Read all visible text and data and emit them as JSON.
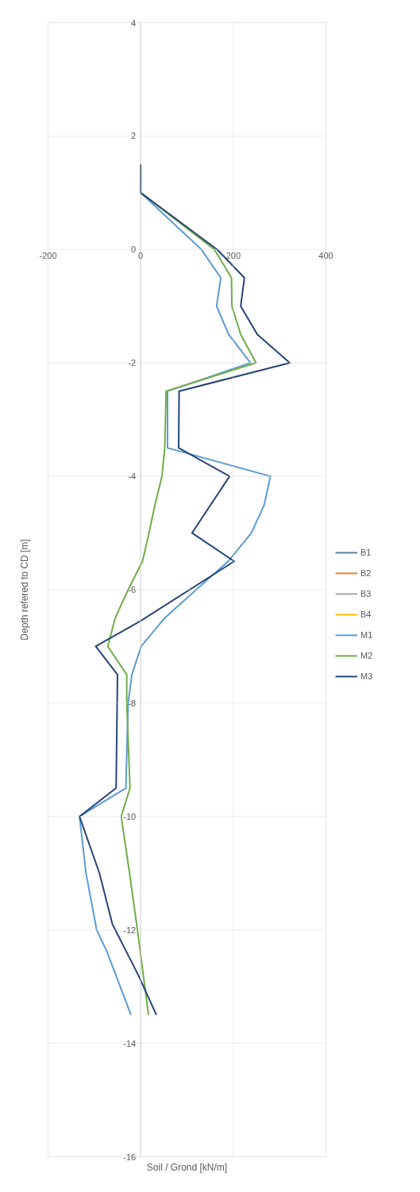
{
  "chart_data": {
    "type": "line",
    "xlabel": "Soil / Grond [kN/m]",
    "ylabel": "Depth refered to CD [m]",
    "xlim": [
      -200,
      400
    ],
    "xticks": [
      -200,
      0,
      200,
      400
    ],
    "ylim": [
      -16,
      4
    ],
    "yticks": [
      -16,
      -14,
      -12,
      -10,
      -8,
      -6,
      -4,
      -2,
      0,
      2,
      4
    ],
    "grid": true,
    "legend": "right",
    "line_style": "solid",
    "marker": "none",
    "series": [
      {
        "name": "B1",
        "color": "#5f7fa8"
      },
      {
        "name": "B2",
        "color": "#ed7d31"
      },
      {
        "name": "B3",
        "color": "#a5a5a5"
      },
      {
        "name": "B4",
        "color": "#ffc000"
      },
      {
        "name": "M1",
        "color": "#5b9bd5",
        "x": [
          0,
          0,
          131,
          173,
          164,
          190,
          237,
          58,
          58,
          280,
          267,
          239,
          189,
          120,
          52,
          1,
          -19,
          -27,
          -32,
          -132,
          -118,
          -95,
          -72,
          -21
        ],
        "values": [
          1.5,
          1.0,
          0,
          -0.5,
          -1.0,
          -1.5,
          -2,
          -2.5,
          -3.5,
          -4,
          -4.5,
          -5,
          -5.5,
          -6,
          -6.5,
          -7,
          -7.5,
          -8,
          -9.5,
          -10,
          -11,
          -12,
          -12.4,
          -13.5
        ]
      },
      {
        "name": "M2",
        "color": "#70ad47",
        "x": [
          0,
          0,
          159,
          196,
          197,
          216,
          249,
          55,
          52,
          46,
          31,
          18,
          4,
          -27,
          -55,
          -71,
          -30,
          -30,
          -23,
          -42,
          -24,
          -7,
          17
        ],
        "values": [
          1.5,
          1.0,
          0,
          -0.5,
          -1.0,
          -1.5,
          -2,
          -2.5,
          -3.5,
          -4,
          -4.5,
          -5,
          -5.5,
          -6,
          -6.5,
          -7,
          -7.5,
          -8,
          -9.5,
          -10,
          -11,
          -12,
          -13.5
        ]
      },
      {
        "name": "M3",
        "color": "#264478",
        "x": [
          0,
          0,
          165,
          224,
          216,
          252,
          322,
          83,
          82,
          192,
          111,
          202,
          0,
          -97,
          -50,
          -53,
          -132,
          -89,
          -61,
          -5,
          34
        ],
        "values": [
          1.5,
          1.0,
          0,
          -0.5,
          -1.0,
          -1.5,
          -2,
          -2.5,
          -3.5,
          -4,
          -5,
          -5.5,
          -6.55,
          -7,
          -7.5,
          -9.5,
          -10,
          -11,
          -11.9,
          -12.8,
          -13.5
        ]
      }
    ]
  }
}
